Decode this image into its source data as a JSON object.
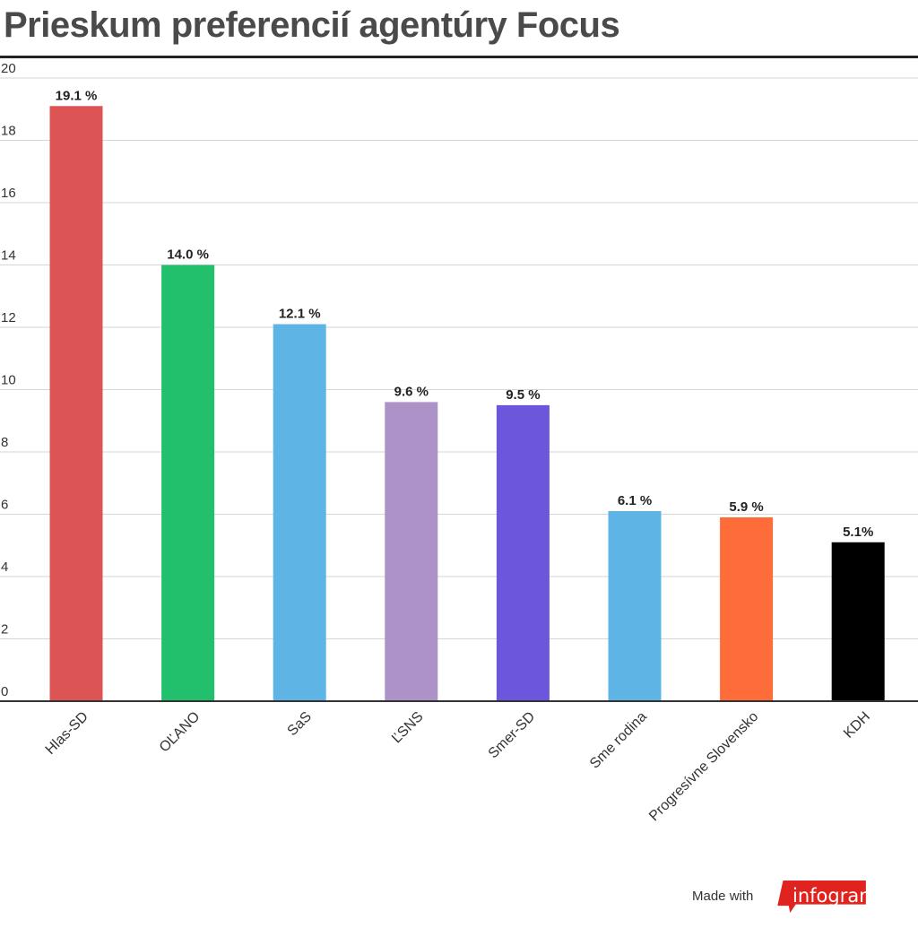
{
  "header": {
    "title": "Prieskum preferencií agentúry Focus"
  },
  "chart_data": {
    "type": "bar",
    "title": "Prieskum preferencií agentúry Focus",
    "categories": [
      "Hlas-SD",
      "OĽANO",
      "SaS",
      "ĽSNS",
      "Smer-SD",
      "Sme rodina",
      "Progresívne Slovensko",
      "KDH"
    ],
    "values": [
      19.1,
      14.0,
      12.1,
      9.6,
      9.5,
      6.1,
      5.9,
      5.1
    ],
    "value_labels": [
      "19.1 %",
      "14.0 %",
      "12.1 %",
      "9.6 %",
      "9.5 %",
      "6.1 %",
      "5.9 %",
      "5.1%"
    ],
    "colors": [
      "#dc5454",
      "#22c06c",
      "#5eb4e4",
      "#ac92c6",
      "#6c56dc",
      "#5eb4e4",
      "#fe6c3a",
      "#000000"
    ],
    "yticks": [
      0,
      2,
      4,
      6,
      8,
      10,
      12,
      14,
      16,
      18,
      20
    ],
    "ylim": [
      0,
      20
    ],
    "grid": true,
    "xlabel": "",
    "ylabel": ""
  },
  "footer": {
    "made_with": "Made with",
    "brand": "infogram",
    "brand_color": "#e0231f"
  }
}
